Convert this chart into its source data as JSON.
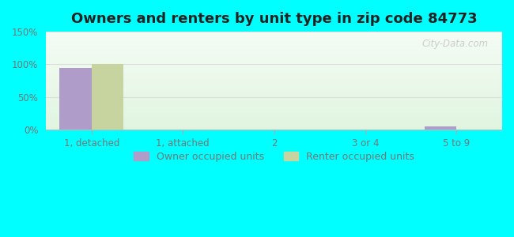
{
  "title": "Owners and renters by unit type in zip code 84773",
  "categories": [
    "1, detached",
    "1, attached",
    "2",
    "3 or 4",
    "5 to 9"
  ],
  "owner_values": [
    95,
    0,
    0,
    0,
    5
  ],
  "renter_values": [
    100,
    0,
    0,
    0,
    0
  ],
  "owner_color": "#b09cc8",
  "renter_color": "#c8d4a0",
  "ylim": [
    0,
    150
  ],
  "yticks": [
    0,
    50,
    100,
    150
  ],
  "ytick_labels": [
    "0%",
    "50%",
    "100%",
    "150%"
  ],
  "background_color": "#00ffff",
  "legend_owner": "Owner occupied units",
  "legend_renter": "Renter occupied units",
  "title_fontsize": 13,
  "watermark": "City-Data.com",
  "bar_width": 0.35,
  "grid_color": "#dddddd",
  "tick_label_color": "#777777",
  "title_color": "#222222",
  "watermark_color": "#cccccc",
  "plot_bg_color": "#eaf5e8"
}
